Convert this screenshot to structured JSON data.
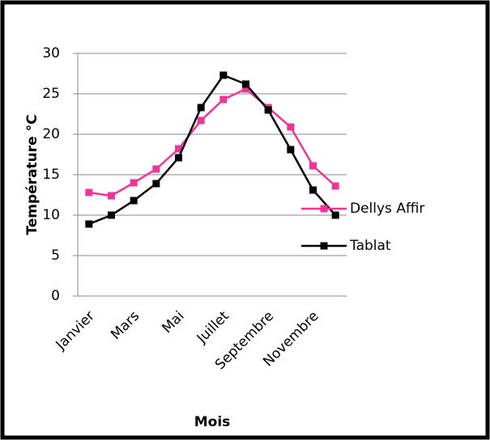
{
  "chart_data": {
    "type": "line",
    "x_label": "Mois",
    "y_label": "Température °C",
    "categories": [
      "Janvier",
      null,
      "Mars",
      null,
      "Mai",
      null,
      "Juillet",
      null,
      "Septembre",
      null,
      "Novembre",
      null
    ],
    "series": [
      {
        "name": "Dellys Affir",
        "color": "#f0359a",
        "values": [
          12.8,
          12.4,
          14.0,
          15.7,
          18.2,
          21.7,
          24.3,
          25.6,
          23.3,
          20.9,
          16.1,
          13.6
        ]
      },
      {
        "name": "Tablat",
        "color": "#000000",
        "values": [
          8.9,
          10.0,
          11.8,
          13.9,
          17.1,
          23.3,
          27.3,
          26.2,
          23.0,
          18.1,
          13.1,
          10.0
        ]
      }
    ],
    "ylim": [
      0,
      30
    ],
    "yticks": [
      0,
      5,
      10,
      15,
      20,
      25,
      30
    ],
    "grid": true,
    "legend": "right"
  }
}
